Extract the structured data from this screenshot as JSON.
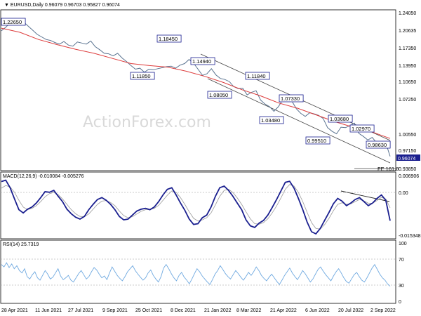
{
  "header": {
    "symbol": "EURUSD,Daily",
    "ohlc": "0.96079 0.96703 0.95827 0.96074"
  },
  "watermark": "ActionForex.com",
  "colors": {
    "price_line": "#5a7390",
    "ma_line": "#dd3b3b",
    "channel": "#444444",
    "macd_line": "#1a1f8f",
    "macd_signal": "#9a9a9a",
    "rsi_line": "#6fa9e0",
    "label_border": "#1a1f8f",
    "current_price_bg": "#1a1f8f"
  },
  "chart_data": [
    {
      "type": "line",
      "panel": "price",
      "title": "EURUSD,Daily",
      "y_ticks": [
        "1.24050",
        "1.20635",
        "1.17350",
        "1.13950",
        "1.10650",
        "1.07250",
        "1.00550",
        "0.97150",
        "0.93850"
      ],
      "ylim": [
        0.935,
        1.243
      ],
      "current_price_label": "0.96074",
      "x_ticks": [
        "28 Apr 2021",
        "11 Jun 2021",
        "27 Jul 2021",
        "9 Sep 2021",
        "25 Oct 2021",
        "8 Dec 2021",
        "21 Jan 2022",
        "8 Mar 2022",
        "21 Apr 2022",
        "6 Jun 2022",
        "20 Jul 2022",
        "2 Sep 2022"
      ],
      "series": [
        {
          "values": [
            1.205,
            1.212,
            1.221,
            1.226,
            1.219,
            1.222,
            1.214,
            1.206,
            1.198,
            1.193,
            1.188,
            1.186,
            1.182,
            1.179,
            1.184,
            1.177,
            1.175,
            1.183,
            1.181,
            1.179,
            1.185,
            1.174,
            1.168,
            1.161,
            1.16,
            1.156,
            1.161,
            1.152,
            1.145,
            1.137,
            1.13,
            1.132,
            1.124,
            1.13,
            1.129,
            1.131,
            1.133,
            1.135,
            1.136,
            1.132,
            1.138,
            1.141,
            1.149,
            1.142,
            1.13,
            1.118,
            1.121,
            1.131,
            1.119,
            1.112,
            1.11,
            1.106,
            1.096,
            1.092,
            1.093,
            1.08,
            1.085,
            1.088,
            1.07,
            1.062,
            1.057,
            1.048,
            1.057,
            1.071,
            1.073,
            1.068,
            1.053,
            1.044,
            1.038,
            1.045,
            1.043,
            1.04,
            1.034,
            1.016,
            1.009,
            1.004,
            1.017,
            1.016,
            1.02,
            1.025,
            1.005,
            0.999,
            0.992,
            0.997,
            0.986,
            0.979,
            0.987,
            0.96
          ]
        },
        {
          "name": "MA",
          "values": [
            1.21,
            1.202,
            1.188,
            1.178,
            1.169,
            1.161,
            1.151,
            1.141,
            1.137,
            1.134,
            1.126,
            1.116,
            1.104,
            1.09,
            1.078,
            1.064,
            1.054,
            1.041,
            1.028,
            1.017,
            1.008,
            0.995
          ]
        }
      ],
      "annotations": [
        "1.22650",
        "1.18450",
        "1.11850",
        "1.14940",
        "1.11840",
        "1.08050",
        "1.07330",
        "1.03480",
        "1.03680",
        "1.02970",
        "0.99510",
        "0.98630",
        "FE 161.8"
      ]
    },
    {
      "type": "line",
      "panel": "macd",
      "title": "MACD(12,26,9) -0.010084 -0.005276",
      "y_ticks": [
        "0.006906",
        "0.00",
        "-0.015348"
      ],
      "ylim": [
        -0.0163,
        0.0075
      ],
      "series": [
        {
          "values": [
            0.0045,
            0.005,
            0.0022,
            -0.002,
            -0.006,
            -0.0072,
            -0.0058,
            -0.005,
            -0.0035,
            -0.0015,
            0.0007,
            0.0005,
            0.0012,
            -0.001,
            -0.003,
            -0.0058,
            -0.0075,
            -0.0088,
            -0.0095,
            -0.0085,
            -0.006,
            -0.004,
            -0.0022,
            -0.0015,
            -0.0025,
            -0.004,
            -0.006,
            -0.0085,
            -0.0098,
            -0.0095,
            -0.008,
            -0.0065,
            -0.0058,
            -0.0055,
            -0.006,
            -0.005,
            -0.003,
            -0.0005,
            0.0016,
            0.0022,
            -0.0005,
            -0.0035,
            -0.0062,
            -0.0095,
            -0.0115,
            -0.0112,
            -0.009,
            -0.008,
            -0.005,
            -0.001,
            0.0022,
            0.0028,
            0.0012,
            -0.001,
            -0.0035,
            -0.006,
            -0.0098,
            -0.012,
            -0.0126,
            -0.011,
            -0.01,
            -0.008,
            -0.0052,
            -0.0022,
            0.001,
            0.0042,
            0.0046,
            0.002,
            -0.0018,
            -0.006,
            -0.0106,
            -0.0142,
            -0.015,
            -0.013,
            -0.01,
            -0.007,
            -0.0038,
            -0.0018,
            -0.0028,
            -0.0045,
            -0.0035,
            -0.0022,
            -0.0015,
            -0.003,
            -0.0045,
            -0.0035,
            -0.0018,
            -0.0005,
            -0.0025,
            -0.0101
          ]
        },
        {
          "name": "signal",
          "values": [
            0.002,
            0.003,
            0.0025,
            0.0005,
            -0.0025,
            -0.005,
            -0.006,
            -0.0055,
            -0.0045,
            -0.003,
            -0.0012,
            0.0,
            0.0004,
            -0.0004,
            -0.002,
            -0.004,
            -0.006,
            -0.0075,
            -0.0085,
            -0.0086,
            -0.0076,
            -0.0058,
            -0.004,
            -0.0028,
            -0.0026,
            -0.0033,
            -0.0045,
            -0.0065,
            -0.0082,
            -0.009,
            -0.0086,
            -0.0076,
            -0.0066,
            -0.006,
            -0.0059,
            -0.0055,
            -0.0044,
            -0.0025,
            -0.0006,
            0.001,
            0.0005,
            -0.0015,
            -0.004,
            -0.0068,
            -0.0092,
            -0.0102,
            -0.0098,
            -0.009,
            -0.0072,
            -0.0042,
            -0.001,
            0.0012,
            0.0016,
            0.0004,
            -0.0016,
            -0.004,
            -0.0068,
            -0.0094,
            -0.0112,
            -0.0114,
            -0.0108,
            -0.0094,
            -0.0072,
            -0.0046,
            -0.0016,
            0.0016,
            0.0034,
            0.0028,
            0.0004,
            -0.003,
            -0.007,
            -0.0108,
            -0.013,
            -0.0132,
            -0.0116,
            -0.0092,
            -0.0064,
            -0.004,
            -0.0034,
            -0.004,
            -0.0038,
            -0.003,
            -0.0022,
            -0.0027,
            -0.0036,
            -0.0036,
            -0.0026,
            -0.0014,
            -0.002,
            -0.0053
          ]
        }
      ]
    },
    {
      "type": "line",
      "panel": "rsi",
      "title": "RSI(14) 25.7319",
      "y_ticks": [
        "100",
        "70",
        "30",
        "0"
      ],
      "ylim": [
        0,
        100
      ],
      "series": [
        {
          "values": [
            62,
            58,
            65,
            57,
            63,
            55,
            60,
            52,
            48,
            55,
            42,
            38,
            45,
            50,
            40,
            36,
            44,
            52,
            46,
            38,
            41,
            48,
            55,
            43,
            37,
            40,
            44,
            36,
            33,
            40,
            47,
            52,
            45,
            38,
            42,
            50,
            57,
            53,
            46,
            40,
            43,
            37,
            48,
            58,
            51,
            44,
            39,
            35,
            42,
            50,
            55,
            60,
            52,
            46,
            41,
            36,
            40,
            48,
            53,
            44,
            38,
            33,
            42,
            56,
            62,
            55,
            47,
            40,
            35,
            44,
            49,
            41,
            36,
            30,
            38,
            47,
            55,
            50,
            43,
            38,
            33,
            29,
            37,
            46,
            52,
            60,
            54,
            47,
            42,
            38,
            45,
            52,
            47,
            41,
            36,
            42,
            49,
            44,
            50,
            58,
            52,
            44,
            39,
            35,
            41,
            46,
            40,
            34,
            29,
            36,
            44,
            50,
            56,
            48,
            42,
            37,
            44,
            52,
            47,
            40,
            33,
            38,
            46,
            54,
            58,
            51,
            45,
            40,
            35,
            43,
            50,
            55,
            48,
            40,
            34,
            31,
            38,
            45,
            49,
            42,
            36,
            33,
            40,
            48,
            56,
            62,
            54,
            46,
            40,
            36,
            30,
            26
          ]
        }
      ]
    }
  ]
}
